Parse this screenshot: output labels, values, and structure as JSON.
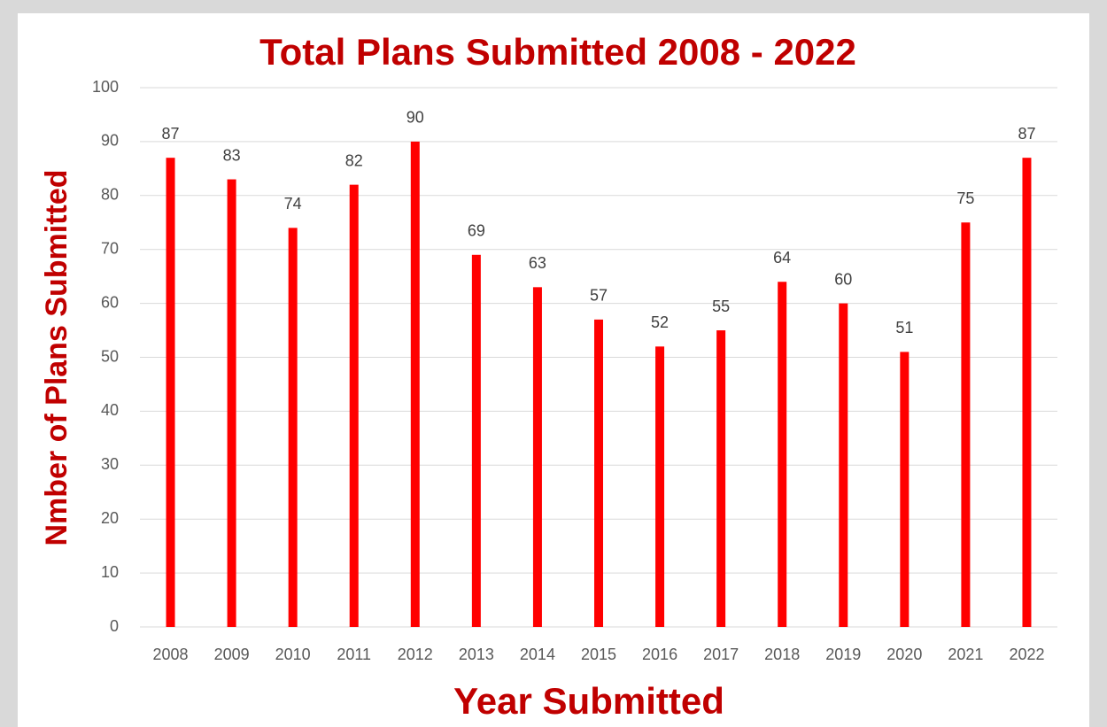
{
  "chart_data": {
    "type": "bar",
    "title": "Total Plans Submitted 2008 - 2022",
    "x_label": "Year Submitted",
    "y_label": "Nmber of Plans Submitted",
    "categories": [
      "2008",
      "2009",
      "2010",
      "2011",
      "2012",
      "2013",
      "2014",
      "2015",
      "2016",
      "2017",
      "2018",
      "2019",
      "2020",
      "2021",
      "2022"
    ],
    "values": [
      87,
      83,
      74,
      82,
      90,
      69,
      63,
      57,
      52,
      55,
      64,
      60,
      51,
      75,
      87
    ],
    "color": "#ff0000",
    "ylim": [
      0,
      100
    ],
    "yticks": [
      0,
      10,
      20,
      30,
      40,
      50,
      60,
      70,
      80,
      90,
      100
    ],
    "grid": true
  }
}
